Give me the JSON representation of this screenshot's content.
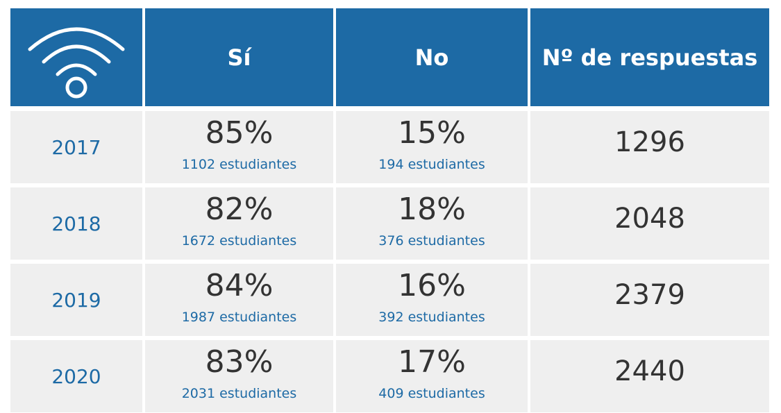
{
  "table": {
    "header": [
      "Sí",
      "No",
      "Nº de respuestas"
    ],
    "rows": [
      {
        "year": "2017",
        "si": {
          "percent": "85%",
          "students": "1102 estudiantes"
        },
        "no": {
          "percent": "15%",
          "students": "194 estudiantes"
        },
        "responses": "1296"
      },
      {
        "year": "2018",
        "si": {
          "percent": "82%",
          "students": "1672 estudiantes"
        },
        "no": {
          "percent": "18%",
          "students": "376 estudiantes"
        },
        "responses": "2048"
      },
      {
        "year": "2019",
        "si": {
          "percent": "84%",
          "students": "1987 estudiantes"
        },
        "no": {
          "percent": "16%",
          "students": "392 estudiantes"
        },
        "responses": "2379"
      },
      {
        "year": "2020",
        "si": {
          "percent": "83%",
          "students": "2031 estudiantes"
        },
        "no": {
          "percent": "17%",
          "students": "409 estudiantes"
        },
        "responses": "2440"
      }
    ]
  }
}
